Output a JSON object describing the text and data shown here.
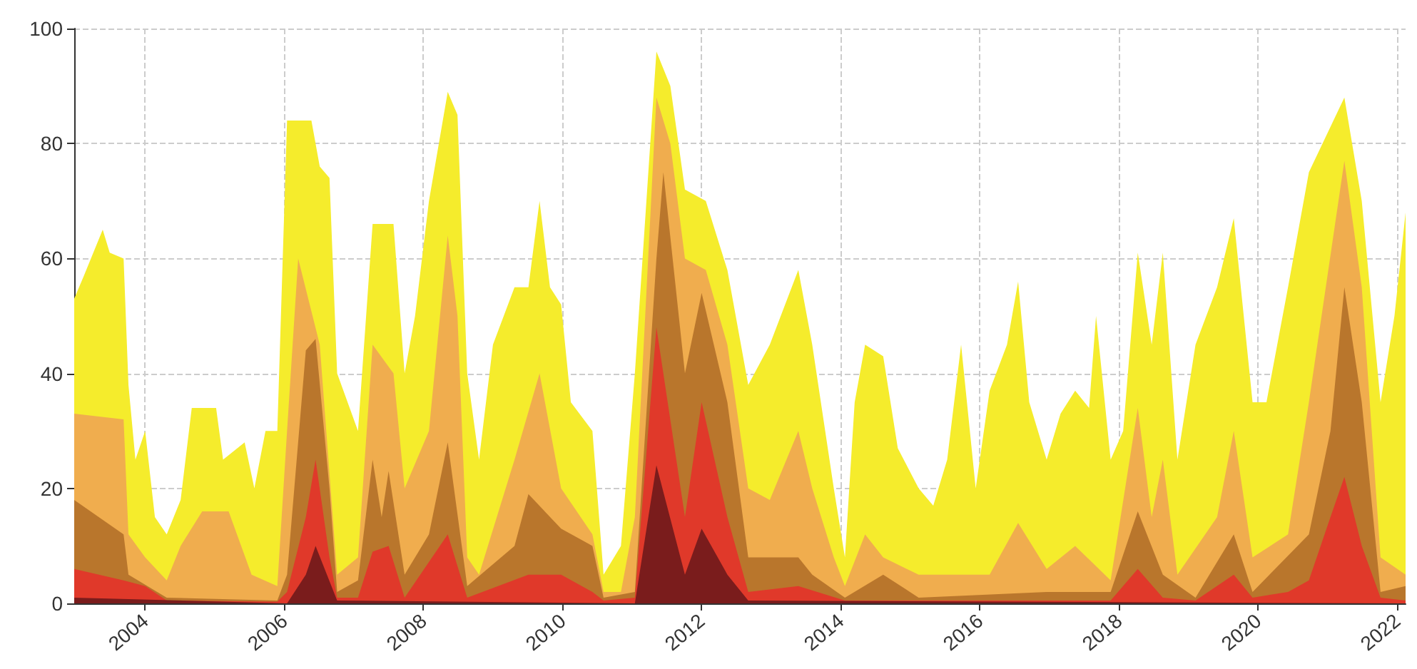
{
  "chart_data": {
    "type": "area",
    "xlim": [
      2002.98,
      2022.12
    ],
    "xticks": [
      2004,
      2006,
      2008,
      2010,
      2012,
      2014,
      2016,
      2018,
      2020,
      2022
    ],
    "ylim": [
      0,
      100
    ],
    "yticks": [
      0,
      20,
      40,
      60,
      80,
      100
    ],
    "grid": true,
    "series": [
      {
        "color": "#f5ec2c",
        "x": [
          2002.98,
          2003.12,
          2003.39,
          2003.49,
          2003.69,
          2003.76,
          2003.86,
          2004.0,
          2004.14,
          2004.31,
          2004.51,
          2004.67,
          2005.02,
          2005.12,
          2005.43,
          2005.57,
          2005.73,
          2005.9,
          2006.04,
          2006.39,
          2006.51,
          2006.65,
          2006.76,
          2007.06,
          2007.27,
          2007.57,
          2007.73,
          2007.88,
          2008.08,
          2008.35,
          2008.49,
          2008.63,
          2008.8,
          2009.0,
          2009.31,
          2009.51,
          2009.67,
          2009.82,
          2009.98,
          2010.12,
          2010.43,
          2010.59,
          2010.84,
          2011.04,
          2011.35,
          2011.55,
          2011.76,
          2012.06,
          2012.37,
          2012.67,
          2012.98,
          2013.39,
          2013.59,
          2013.9,
          2014.06,
          2014.2,
          2014.35,
          2014.61,
          2014.82,
          2015.12,
          2015.33,
          2015.53,
          2015.73,
          2015.94,
          2016.14,
          2016.39,
          2016.55,
          2016.71,
          2016.96,
          2017.16,
          2017.37,
          2017.57,
          2017.67,
          2017.88,
          2018.06,
          2018.27,
          2018.47,
          2018.63,
          2018.84,
          2019.1,
          2019.41,
          2019.65,
          2019.92,
          2020.12,
          2020.43,
          2020.73,
          2021.24,
          2021.49,
          2021.76,
          2021.96,
          2022.12
        ],
        "values": [
          53,
          57,
          65,
          61,
          60,
          38,
          25,
          30,
          15,
          12,
          18,
          34,
          34,
          25,
          28,
          20,
          30,
          30,
          84,
          84,
          76,
          74,
          40,
          30,
          66,
          66,
          40,
          50,
          70,
          89,
          85,
          40,
          25,
          45,
          55,
          55,
          70,
          55,
          52,
          35,
          30,
          5,
          10,
          40,
          96,
          90,
          72,
          70,
          58,
          38,
          45,
          58,
          45,
          20,
          8,
          35,
          45,
          43,
          27,
          20,
          17,
          25,
          45,
          20,
          37,
          45,
          56,
          35,
          25,
          33,
          37,
          34,
          50,
          25,
          30,
          61,
          45,
          61,
          25,
          45,
          55,
          67,
          35,
          35,
          55,
          75,
          88,
          70,
          35,
          50,
          68
        ]
      },
      {
        "color": "#f0ad4e",
        "x": [
          2002.98,
          2003.69,
          2003.76,
          2004.0,
          2004.31,
          2004.51,
          2004.82,
          2005.2,
          2005.53,
          2005.9,
          2006.04,
          2006.2,
          2006.51,
          2006.76,
          2007.06,
          2007.27,
          2007.57,
          2007.73,
          2008.08,
          2008.35,
          2008.49,
          2008.63,
          2008.8,
          2009.31,
          2009.67,
          2009.98,
          2010.43,
          2010.59,
          2010.84,
          2011.04,
          2011.35,
          2011.55,
          2011.76,
          2012.06,
          2012.37,
          2012.67,
          2012.98,
          2013.39,
          2013.59,
          2013.9,
          2014.06,
          2014.35,
          2014.61,
          2015.12,
          2015.53,
          2016.14,
          2016.55,
          2016.96,
          2017.37,
          2017.88,
          2018.27,
          2018.47,
          2018.63,
          2018.84,
          2019.41,
          2019.65,
          2019.92,
          2020.43,
          2020.73,
          2021.24,
          2021.49,
          2021.76,
          2022.12
        ],
        "values": [
          33,
          32,
          12,
          8,
          4,
          10,
          16,
          16,
          5,
          3,
          30,
          60,
          45,
          5,
          8,
          45,
          40,
          20,
          30,
          64,
          50,
          8,
          5,
          25,
          40,
          20,
          12,
          2,
          2,
          15,
          88,
          80,
          60,
          58,
          45,
          20,
          18,
          30,
          20,
          8,
          3,
          12,
          8,
          5,
          5,
          5,
          14,
          6,
          10,
          4,
          34,
          15,
          25,
          5,
          15,
          30,
          8,
          12,
          35,
          77,
          55,
          8,
          5
        ]
      },
      {
        "color": "#b9762c",
        "x": [
          2002.98,
          2003.69,
          2003.76,
          2004.31,
          2005.9,
          2006.04,
          2006.31,
          2006.45,
          2006.65,
          2006.76,
          2007.06,
          2007.27,
          2007.4,
          2007.5,
          2007.73,
          2008.08,
          2008.35,
          2008.63,
          2009.31,
          2009.51,
          2009.98,
          2010.43,
          2010.59,
          2011.04,
          2011.35,
          2011.45,
          2011.76,
          2012.0,
          2012.37,
          2012.67,
          2013.39,
          2013.59,
          2014.06,
          2014.61,
          2015.12,
          2016.96,
          2017.88,
          2018.27,
          2018.63,
          2019.1,
          2019.65,
          2019.92,
          2020.73,
          2021.04,
          2021.24,
          2021.49,
          2021.76,
          2022.12
        ],
        "values": [
          18,
          12,
          5,
          1,
          0.5,
          5,
          44,
          46,
          20,
          2,
          4,
          25,
          15,
          23,
          5,
          12,
          28,
          3,
          10,
          19,
          13,
          10,
          1,
          2,
          60,
          75,
          40,
          54,
          35,
          8,
          8,
          5,
          1,
          5,
          1,
          2,
          2,
          16,
          5,
          1,
          12,
          2,
          12,
          30,
          55,
          35,
          2,
          3
        ]
      },
      {
        "color": "#e0392a",
        "x": [
          2002.98,
          2003.69,
          2004.0,
          2004.31,
          2005.9,
          2006.04,
          2006.31,
          2006.45,
          2006.65,
          2006.76,
          2007.06,
          2007.27,
          2007.5,
          2007.73,
          2008.35,
          2008.63,
          2009.51,
          2009.98,
          2010.43,
          2010.59,
          2011.04,
          2011.35,
          2011.76,
          2012.0,
          2012.37,
          2012.67,
          2013.39,
          2014.06,
          2017.88,
          2018.27,
          2018.63,
          2019.1,
          2019.65,
          2019.92,
          2020.43,
          2020.73,
          2021.04,
          2021.24,
          2021.49,
          2021.76,
          2022.12
        ],
        "values": [
          6,
          4,
          3,
          0.5,
          0.3,
          2,
          15,
          25,
          8,
          1,
          1,
          9,
          10,
          1,
          12,
          1,
          5,
          5,
          2,
          0.5,
          1,
          48,
          15,
          35,
          15,
          2,
          3,
          0.5,
          0.5,
          6,
          1,
          0.5,
          5,
          1,
          2,
          4,
          15,
          22,
          10,
          1,
          0.5
        ]
      },
      {
        "color": "#7a1c1c",
        "x": [
          2002.98,
          2006.04,
          2006.31,
          2006.45,
          2006.76,
          2011.04,
          2011.35,
          2011.76,
          2012.0,
          2012.37,
          2012.67,
          2022.12
        ],
        "values": [
          1,
          0,
          5,
          10,
          0.5,
          0,
          24,
          5,
          13,
          5,
          0.5,
          0
        ]
      }
    ]
  }
}
